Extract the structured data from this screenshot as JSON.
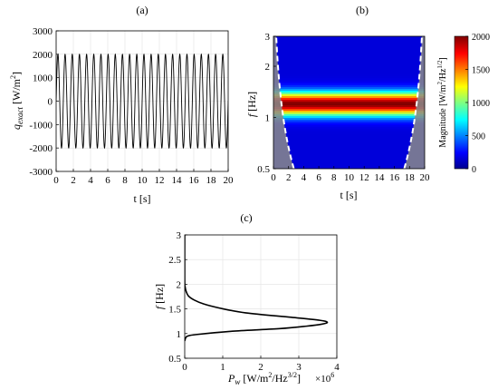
{
  "chart_data": [
    {
      "panel": "(a)",
      "type": "line",
      "xlabel": "t [s]",
      "ylabel_main": "q",
      "ylabel_sub": "exact",
      "ylabel_unit": "[W/m",
      "ylabel_sup": "2",
      "ylabel_close": "]",
      "xlim": [
        0,
        20
      ],
      "ylim": [
        -3000,
        3000
      ],
      "xticks": [
        0,
        2,
        4,
        6,
        8,
        10,
        12,
        14,
        16,
        18,
        20
      ],
      "yticks": [
        -3000,
        -2000,
        -1000,
        0,
        1000,
        2000,
        3000
      ],
      "grid": true,
      "series": [
        {
          "amplitude": 2000,
          "frequency_hz": 1.2,
          "t_start": 0,
          "t_end": 20
        }
      ]
    },
    {
      "panel": "(b)",
      "type": "heatmap",
      "xlabel": "t [s]",
      "ylabel_f": "f",
      "ylabel_unit": " [Hz]",
      "xlim": [
        0,
        20
      ],
      "ylim": [
        0.5,
        3
      ],
      "yscale": "log",
      "xticks": [
        0,
        2,
        4,
        6,
        8,
        10,
        12,
        14,
        16,
        18,
        20
      ],
      "yticks": [
        0.5,
        1,
        2,
        3
      ],
      "peak_frequency_hz": 1.2,
      "colorbar": {
        "label": "Magnitude [W/m",
        "label_sup1": "2",
        "label_mid": "/Hz",
        "label_sup2": "1/2",
        "label_close": "]",
        "min": 0,
        "max": 2000,
        "ticks": [
          0,
          500,
          1000,
          1500,
          2000
        ]
      }
    },
    {
      "panel": "(c)",
      "type": "line",
      "xlabel_main": "P",
      "xlabel_sub": "w",
      "xlabel_unit": " [W/m",
      "xlabel_sup1": "2",
      "xlabel_mid": "/Hz",
      "xlabel_sup2": "3/2",
      "xlabel_close": "]",
      "x_multiplier": "×10",
      "x_multiplier_exp": "6",
      "ylabel_f": "f",
      "ylabel_unit": " [Hz]",
      "xlim": [
        0,
        4
      ],
      "ylim": [
        0.5,
        3
      ],
      "xticks": [
        0,
        1,
        2,
        3,
        4
      ],
      "yticks": [
        0.5,
        1,
        1.5,
        2,
        2.5,
        3
      ],
      "grid": true,
      "series": [
        {
          "x": [
            0,
            0.01,
            0.03,
            0.08,
            0.3,
            1.3,
            2.5,
            3.2,
            3.6,
            3.75,
            3.55,
            2.8,
            1.6,
            0.9,
            0.5,
            0.25,
            0.1,
            0.04,
            0.01,
            0,
            0
          ],
          "y": [
            0.85,
            0.88,
            0.92,
            0.95,
            0.98,
            1.05,
            1.1,
            1.15,
            1.19,
            1.23,
            1.27,
            1.33,
            1.42,
            1.52,
            1.6,
            1.68,
            1.76,
            1.85,
            1.95,
            2.1,
            3.0
          ]
        }
      ]
    }
  ]
}
